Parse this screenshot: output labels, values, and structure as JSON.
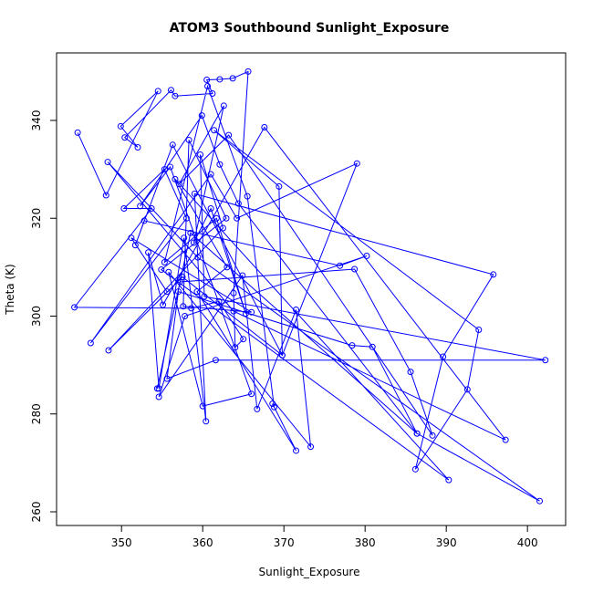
{
  "chart_data": {
    "type": "line",
    "title": "ATOM3 Southbound Sunlight_Exposure",
    "x_label": "Sunlight_Exposure",
    "y_label": "Theta (K)",
    "color": "#0000ff",
    "markers": "open-circle",
    "xlim": [
      342.0,
      404.7
    ],
    "ylim": [
      257.2,
      353.8
    ],
    "xticks": [
      350,
      360,
      370,
      380,
      390,
      400
    ],
    "yticks": [
      260,
      280,
      300,
      320,
      340
    ],
    "x": [
      344.6,
      348.1,
      354.5,
      349.9,
      352.0,
      350.4,
      356.1,
      356.6,
      361.2,
      360.5,
      362.1,
      363.7,
      365.6,
      363.8,
      364.0,
      365.0,
      362.0,
      358.6,
      344.2,
      353.7,
      350.3,
      355.3,
      358.0,
      346.2,
      361.0,
      364.2,
      379.0,
      369.8,
      357.5,
      348.4,
      362.5,
      359.7,
      360.2,
      402.2,
      361.6,
      355.6,
      357.0,
      378.4,
      380.9,
      386.4,
      401.5,
      359.4,
      348.3,
      363.8,
      397.3,
      367.6,
      355.1,
      353.3,
      354.6,
      357.7,
      360.4,
      359.0,
      395.8,
      389.6,
      386.2,
      392.6,
      394.0,
      361.4,
      369.4,
      369.8,
      356.3,
      351.7,
      352.8,
      376.9,
      380.2,
      357.8,
      354.6,
      364.9,
      366.7,
      371.5,
      373.3,
      355.8,
      360.0,
      366.0,
      356.0,
      352.3,
      359.9,
      362.1,
      364.4,
      386.4,
      358.5,
      354.4,
      357.2,
      378.7,
      385.6,
      388.3,
      363.2,
      357.1,
      362.6,
      358.9,
      361.0,
      365.3,
      361.7,
      355.3,
      360.6,
      365.5,
      368.8,
      368.6,
      371.5,
      359.3,
      363.0,
      356.6,
      390.3,
      354.9,
      362.9,
      358.3,
      357.6,
      366.0,
      351.2,
      355.6
    ],
    "y": [
      337.5,
      324.7,
      346.0,
      338.8,
      334.5,
      336.5,
      346.2,
      345.0,
      345.5,
      348.3,
      348.4,
      348.6,
      350.0,
      304.7,
      293.6,
      295.3,
      303.0,
      301.6,
      301.8,
      322.0,
      322.0,
      330.0,
      320.0,
      294.5,
      329.0,
      320.0,
      331.2,
      292.0,
      308.0,
      293.0,
      318.0,
      333.0,
      304.0,
      291.0,
      291.0,
      287.2,
      305.0,
      294.0,
      293.7,
      276.0,
      262.2,
      312.0,
      331.5,
      301.0,
      274.7,
      338.6,
      302.3,
      313.0,
      285.2,
      316.0,
      278.5,
      325.0,
      308.5,
      291.7,
      268.7,
      285.0,
      297.2,
      338.0,
      326.5,
      292.0,
      335.0,
      314.5,
      319.5,
      310.3,
      312.3,
      300.0,
      283.5,
      308.3,
      281.0,
      301.3,
      273.3,
      309.0,
      281.6,
      284.1,
      330.5,
      322.5,
      341.0,
      331.0,
      323.0,
      276.0,
      317.0,
      285.2,
      307.0,
      309.6,
      288.6,
      275.6,
      337.0,
      327.0,
      343.0,
      315.0,
      322.0,
      300.5,
      320.0,
      311.0,
      347.0,
      324.5,
      281.4,
      282.1,
      272.5,
      305.0,
      310.0,
      328.0,
      266.5,
      309.5,
      320.0,
      336.0,
      302.0,
      300.8,
      316.0,
      305.0
    ]
  }
}
